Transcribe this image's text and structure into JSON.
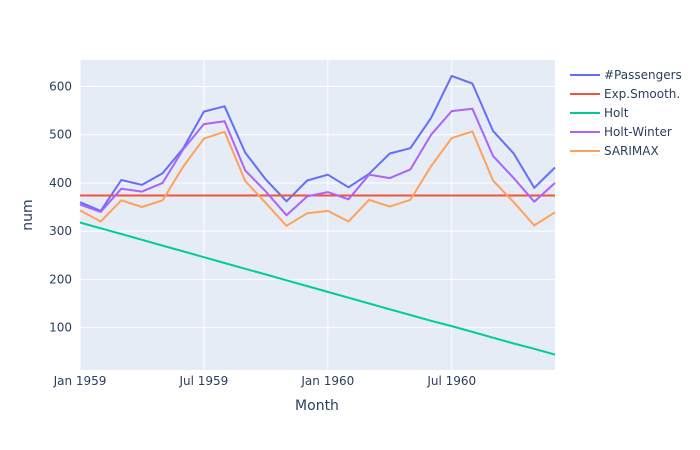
{
  "chart_data": {
    "type": "line",
    "xlabel": "Month",
    "ylabel": "num",
    "x": [
      "1959-01",
      "1959-02",
      "1959-03",
      "1959-04",
      "1959-05",
      "1959-06",
      "1959-07",
      "1959-08",
      "1959-09",
      "1959-10",
      "1959-11",
      "1959-12",
      "1960-01",
      "1960-02",
      "1960-03",
      "1960-04",
      "1960-05",
      "1960-06",
      "1960-07",
      "1960-08",
      "1960-09",
      "1960-10",
      "1960-11",
      "1960-12"
    ],
    "x_tick_labels": [
      "Jan 1959",
      "Jul 1959",
      "Jan 1960",
      "Jul 1960"
    ],
    "y_ticks": [
      100,
      200,
      300,
      400,
      500,
      600
    ],
    "ylim": [
      12,
      655
    ],
    "grid": true,
    "legend_position": "right",
    "series": [
      {
        "name": "#Passengers",
        "color": "#636efa",
        "values": [
          360,
          342,
          406,
          396,
          420,
          472,
          548,
          559,
          463,
          407,
          362,
          405,
          417,
          391,
          419,
          461,
          472,
          535,
          622,
          606,
          508,
          461,
          390,
          432
        ]
      },
      {
        "name": "Exp.Smooth.",
        "color": "#ef553b",
        "values": [
          374,
          374,
          374,
          374,
          374,
          374,
          374,
          374,
          374,
          374,
          374,
          374,
          374,
          374,
          374,
          374,
          374,
          374,
          374,
          374,
          374,
          374,
          374,
          374
        ]
      },
      {
        "name": "Holt",
        "color": "#00cc96",
        "values": [
          318,
          306,
          294,
          282,
          270,
          258,
          246,
          234,
          222,
          210,
          198,
          186,
          174,
          162,
          150,
          138,
          126,
          114,
          103,
          91,
          79,
          67,
          56,
          44
        ]
      },
      {
        "name": "Holt-Winter",
        "color": "#ab63fa",
        "values": [
          355,
          340,
          388,
          382,
          400,
          470,
          522,
          528,
          426,
          382,
          333,
          372,
          381,
          366,
          417,
          410,
          428,
          500,
          549,
          554,
          456,
          410,
          361,
          400
        ]
      },
      {
        "name": "SARIMAX",
        "color": "#ffa15a",
        "values": [
          343,
          320,
          364,
          350,
          364,
          434,
          492,
          506,
          404,
          358,
          311,
          337,
          342,
          320,
          365,
          351,
          365,
          435,
          493,
          507,
          405,
          360,
          312,
          339
        ]
      }
    ]
  }
}
